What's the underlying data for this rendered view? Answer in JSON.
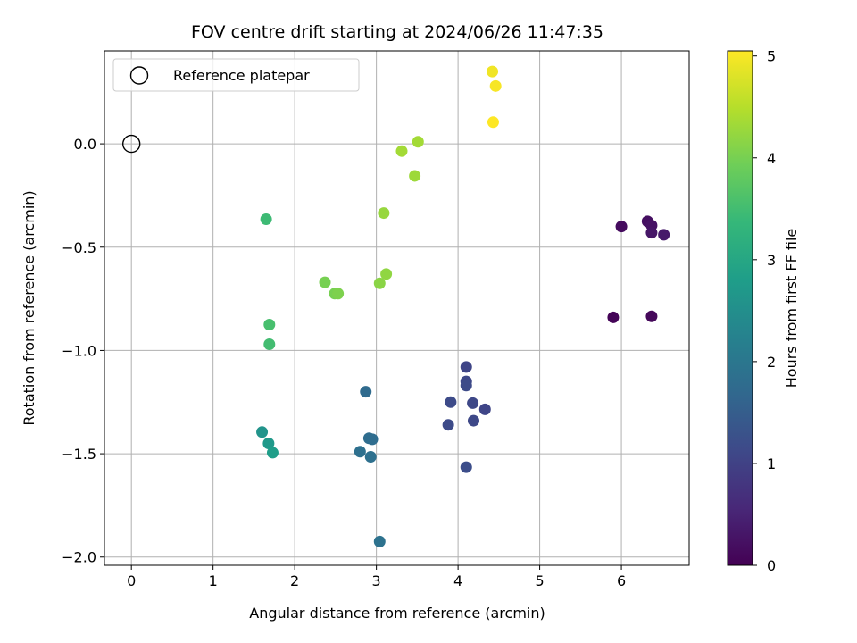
{
  "chart_data": {
    "type": "scatter",
    "title": "FOV centre drift starting at 2024/06/26 11:47:35",
    "xlabel": "Angular distance from reference (arcmin)",
    "ylabel": "Rotation from reference (arcmin)",
    "xlim": [
      -0.33,
      6.83
    ],
    "ylim": [
      -2.04,
      0.45
    ],
    "xticks": [
      0,
      1,
      2,
      3,
      4,
      5,
      6
    ],
    "yticks": [
      0.0,
      -0.5,
      -1.0,
      -1.5,
      -2.0
    ],
    "xtick_labels": [
      "0",
      "1",
      "2",
      "3",
      "4",
      "5",
      "6"
    ],
    "ytick_labels": [
      "0.0",
      "−0.5",
      "−1.0",
      "−1.5",
      "−2.0"
    ],
    "grid": true,
    "legend": {
      "position": "top-left",
      "entries": [
        "Reference platepar"
      ]
    },
    "reference_point": {
      "x": 0.0,
      "y": 0.0
    },
    "colorbar": {
      "label": "Hours from first FF file",
      "min": 0,
      "max": 5.05,
      "ticks": [
        0,
        1,
        2,
        3,
        4,
        5
      ],
      "tick_labels": [
        "0",
        "1",
        "2",
        "3",
        "4",
        "5"
      ],
      "colormap": "viridis"
    },
    "colormap_stops": [
      "#440154",
      "#482878",
      "#3e4989",
      "#31688e",
      "#26828e",
      "#1f9e89",
      "#35b779",
      "#6ece58",
      "#b5de2b",
      "#fde725"
    ],
    "points": [
      {
        "x": 5.9,
        "y": -0.84,
        "t": 0.05
      },
      {
        "x": 6.37,
        "y": -0.835,
        "t": 0.1
      },
      {
        "x": 6.0,
        "y": -0.4,
        "t": 0.15
      },
      {
        "x": 6.32,
        "y": -0.375,
        "t": 0.2
      },
      {
        "x": 6.37,
        "y": -0.395,
        "t": 0.25
      },
      {
        "x": 6.37,
        "y": -0.43,
        "t": 0.3
      },
      {
        "x": 6.52,
        "y": -0.44,
        "t": 0.35
      },
      {
        "x": 4.1,
        "y": -1.08,
        "t": 1.05
      },
      {
        "x": 4.1,
        "y": -1.15,
        "t": 1.1
      },
      {
        "x": 4.1,
        "y": -1.17,
        "t": 1.15
      },
      {
        "x": 3.91,
        "y": -1.25,
        "t": 1.15
      },
      {
        "x": 4.18,
        "y": -1.255,
        "t": 1.1
      },
      {
        "x": 4.33,
        "y": -1.285,
        "t": 1.05
      },
      {
        "x": 4.19,
        "y": -1.34,
        "t": 1.1
      },
      {
        "x": 3.88,
        "y": -1.36,
        "t": 1.15
      },
      {
        "x": 4.1,
        "y": -1.565,
        "t": 1.2
      },
      {
        "x": 2.87,
        "y": -1.2,
        "t": 1.75
      },
      {
        "x": 2.91,
        "y": -1.425,
        "t": 1.8
      },
      {
        "x": 2.95,
        "y": -1.43,
        "t": 1.8
      },
      {
        "x": 2.8,
        "y": -1.49,
        "t": 1.85
      },
      {
        "x": 2.93,
        "y": -1.515,
        "t": 1.85
      },
      {
        "x": 3.04,
        "y": -1.925,
        "t": 1.9
      },
      {
        "x": 1.6,
        "y": -1.395,
        "t": 2.6
      },
      {
        "x": 1.68,
        "y": -1.45,
        "t": 2.7
      },
      {
        "x": 1.73,
        "y": -1.495,
        "t": 2.8
      },
      {
        "x": 1.69,
        "y": -0.97,
        "t": 3.5
      },
      {
        "x": 1.69,
        "y": -0.875,
        "t": 3.55
      },
      {
        "x": 1.65,
        "y": -0.365,
        "t": 3.45
      },
      {
        "x": 2.37,
        "y": -0.67,
        "t": 4.0
      },
      {
        "x": 2.49,
        "y": -0.725,
        "t": 4.0
      },
      {
        "x": 2.53,
        "y": -0.725,
        "t": 4.05
      },
      {
        "x": 3.04,
        "y": -0.675,
        "t": 4.15
      },
      {
        "x": 3.12,
        "y": -0.63,
        "t": 4.2
      },
      {
        "x": 3.09,
        "y": -0.335,
        "t": 4.25
      },
      {
        "x": 3.47,
        "y": -0.155,
        "t": 4.3
      },
      {
        "x": 3.31,
        "y": -0.035,
        "t": 4.35
      },
      {
        "x": 3.51,
        "y": 0.01,
        "t": 4.35
      },
      {
        "x": 4.42,
        "y": 0.35,
        "t": 4.95
      },
      {
        "x": 4.46,
        "y": 0.28,
        "t": 5.0
      },
      {
        "x": 4.43,
        "y": 0.105,
        "t": 5.05
      }
    ]
  }
}
